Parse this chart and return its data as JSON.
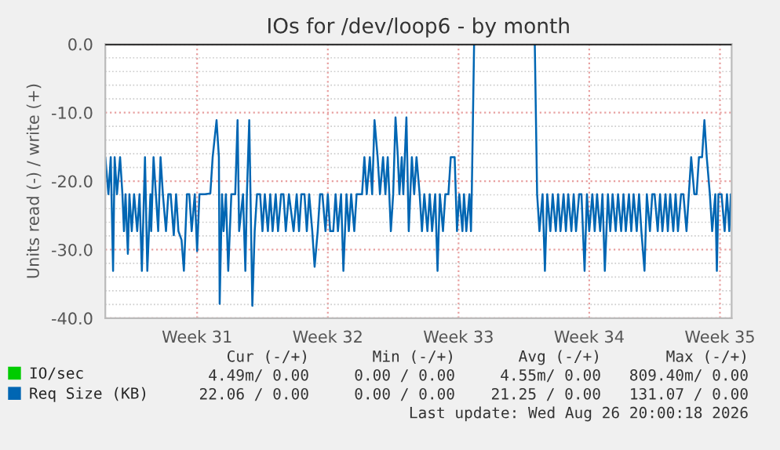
{
  "chart_data": {
    "type": "line",
    "title": "IOs for /dev/loop6 - by month",
    "ylabel": "Units read (-) / write (+)",
    "xlim": [
      "2026-07-25T14:00",
      "2026-08-28T03:00"
    ],
    "ylim": [
      -40,
      0
    ],
    "xticks": [
      {
        "value": "2026-07-30T12:00",
        "label": "Week 31"
      },
      {
        "value": "2026-08-06T12:00",
        "label": "Week 32"
      },
      {
        "value": "2026-08-13T12:00",
        "label": "Week 33"
      },
      {
        "value": "2026-08-20T12:00",
        "label": "Week 34"
      },
      {
        "value": "2026-08-27T12:00",
        "label": "Week 35"
      }
    ],
    "yticks": [
      {
        "value": -40,
        "label": "-40.0"
      },
      {
        "value": -30,
        "label": "-30.0"
      },
      {
        "value": -20,
        "label": "-20.0"
      },
      {
        "value": -10,
        "label": "-10.0"
      },
      {
        "value": 0,
        "label": "0.0"
      }
    ],
    "grid": true,
    "legend": "bottom left",
    "marker": "none",
    "line_style": "solid",
    "ref_lines": [
      {
        "axis": "y",
        "value": 0,
        "color": "#000000"
      }
    ],
    "series": [
      {
        "name": "IO/sec",
        "color": "#00cc00",
        "type": "line"
      },
      {
        "name": "Req Size (KB)",
        "color": "#0066b3",
        "x": [
          "2026-07-25T14:00",
          "2026-07-25T18:00",
          "2026-07-25T21:00",
          "2026-07-26T00:00",
          "2026-07-26T02:00",
          "2026-07-26T05:00",
          "2026-07-26T09:00",
          "2026-07-26T12:00",
          "2026-07-26T14:00",
          "2026-07-26T16:00",
          "2026-07-26T19:00",
          "2026-07-26T21:00",
          "2026-07-27T00:00",
          "2026-07-27T03:00",
          "2026-07-27T07:00",
          "2026-07-27T10:00",
          "2026-07-27T13:00",
          "2026-07-27T17:00",
          "2026-07-27T20:00",
          "2026-07-28T00:00",
          "2026-07-28T01:00",
          "2026-07-28T04:00",
          "2026-07-28T07:00",
          "2026-07-28T10:00",
          "2026-07-28T13:00",
          "2026-07-28T16:00",
          "2026-07-28T20:00",
          "2026-07-28T23:00",
          "2026-07-29T02:00",
          "2026-07-29T06:00",
          "2026-07-29T09:00",
          "2026-07-29T12:00",
          "2026-07-29T16:00",
          "2026-07-29T19:00",
          "2026-07-29T23:00",
          "2026-07-30T02:00",
          "2026-07-30T05:00",
          "2026-07-30T09:00",
          "2026-07-30T12:00",
          "2026-07-30T15:00",
          "2026-07-30T22:00",
          "2026-07-31T05:00",
          "2026-07-31T08:00",
          "2026-07-31T13:00",
          "2026-07-31T16:00",
          "2026-07-31T17:00",
          "2026-07-31T20:00",
          "2026-07-31T22:00",
          "2026-08-01T01:00",
          "2026-08-01T04:00",
          "2026-08-01T08:00",
          "2026-08-01T13:00",
          "2026-08-01T16:00",
          "2026-08-01T18:00",
          "2026-08-01T23:00",
          "2026-08-02T02:00",
          "2026-08-02T04:00",
          "2026-08-02T07:00",
          "2026-08-02T11:00",
          "2026-08-02T14:00",
          "2026-08-02T17:00",
          "2026-08-02T21:00",
          "2026-08-03T00:00",
          "2026-08-03T03:00",
          "2026-08-03T07:00",
          "2026-08-03T10:00",
          "2026-08-03T13:00",
          "2026-08-03T17:00",
          "2026-08-03T20:00",
          "2026-08-04T00:00",
          "2026-08-04T03:00",
          "2026-08-04T06:00",
          "2026-08-04T10:00",
          "2026-08-04T16:00",
          "2026-08-04T20:00",
          "2026-08-04T23:00",
          "2026-08-05T02:00",
          "2026-08-05T06:00",
          "2026-08-05T09:00",
          "2026-08-05T12:00",
          "2026-08-05T16:00",
          "2026-08-05T19:00",
          "2026-08-05T23:00",
          "2026-08-06T02:00",
          "2026-08-06T05:00",
          "2026-08-06T09:00",
          "2026-08-06T12:00",
          "2026-08-06T15:00",
          "2026-08-06T19:00",
          "2026-08-06T22:00",
          "2026-08-07T01:00",
          "2026-08-07T05:00",
          "2026-08-07T08:00",
          "2026-08-07T12:00",
          "2026-08-07T15:00",
          "2026-08-07T18:00",
          "2026-08-07T22:00",
          "2026-08-08T01:00",
          "2026-08-08T04:00",
          "2026-08-08T08:00",
          "2026-08-08T11:00",
          "2026-08-08T14:00",
          "2026-08-08T18:00",
          "2026-08-08T21:00",
          "2026-08-09T00:00",
          "2026-08-09T04:00",
          "2026-08-09T07:00",
          "2026-08-09T11:00",
          "2026-08-09T14:00",
          "2026-08-09T17:00",
          "2026-08-09T21:00",
          "2026-08-10T00:00",
          "2026-08-10T03:00",
          "2026-08-10T06:00",
          "2026-08-10T08:00",
          "2026-08-10T11:00",
          "2026-08-10T13:00",
          "2026-08-10T17:00",
          "2026-08-10T20:00",
          "2026-08-11T00:00",
          "2026-08-11T03:00",
          "2026-08-11T06:00",
          "2026-08-11T10:00",
          "2026-08-11T13:00",
          "2026-08-11T16:00",
          "2026-08-11T20:00",
          "2026-08-11T23:00",
          "2026-08-12T02:00",
          "2026-08-12T06:00",
          "2026-08-12T09:00",
          "2026-08-12T12:00",
          "2026-08-12T16:00",
          "2026-08-12T19:00",
          "2026-08-12T23:00",
          "2026-08-13T02:00",
          "2026-08-13T07:00",
          "2026-08-13T10:00",
          "2026-08-13T13:00",
          "2026-08-13T17:00",
          "2026-08-13T19:00",
          "2026-08-13T22:00",
          "2026-08-14T02:00",
          "2026-08-14T04:00",
          "2026-08-14T05:00",
          "2026-08-14T08:00",
          "2026-08-16T00:00",
          "2026-08-17T14:00",
          "2026-08-17T17:00",
          "2026-08-17T20:00",
          "2026-08-18T00:00",
          "2026-08-18T03:00",
          "2026-08-18T06:00",
          "2026-08-18T10:00",
          "2026-08-18T13:00",
          "2026-08-18T17:00",
          "2026-08-18T20:00",
          "2026-08-18T23:00",
          "2026-08-19T03:00",
          "2026-08-19T06:00",
          "2026-08-19T09:00",
          "2026-08-19T13:00",
          "2026-08-19T16:00",
          "2026-08-19T19:00",
          "2026-08-19T23:00",
          "2026-08-20T02:00",
          "2026-08-20T06:00",
          "2026-08-20T09:00",
          "2026-08-20T12:00",
          "2026-08-20T16:00",
          "2026-08-20T19:00",
          "2026-08-20T22:00",
          "2026-08-21T02:00",
          "2026-08-21T05:00",
          "2026-08-21T08:00",
          "2026-08-21T12:00",
          "2026-08-21T15:00",
          "2026-08-21T18:00",
          "2026-08-21T22:00",
          "2026-08-22T01:00",
          "2026-08-22T05:00",
          "2026-08-22T08:00",
          "2026-08-22T11:00",
          "2026-08-22T15:00",
          "2026-08-22T18:00",
          "2026-08-22T21:00",
          "2026-08-23T01:00",
          "2026-08-23T04:00",
          "2026-08-23T07:00",
          "2026-08-23T11:00",
          "2026-08-23T14:00",
          "2026-08-23T18:00",
          "2026-08-23T21:00",
          "2026-08-24T00:00",
          "2026-08-24T04:00",
          "2026-08-24T07:00",
          "2026-08-24T10:00",
          "2026-08-24T14:00",
          "2026-08-24T17:00",
          "2026-08-24T20:00",
          "2026-08-25T00:00",
          "2026-08-25T03:00",
          "2026-08-25T06:00",
          "2026-08-25T10:00",
          "2026-08-25T13:00",
          "2026-08-25T17:00",
          "2026-08-25T20:00",
          "2026-08-25T23:00",
          "2026-08-26T03:00",
          "2026-08-26T06:00",
          "2026-08-26T09:00",
          "2026-08-26T13:00",
          "2026-08-26T16:00",
          "2026-08-26T19:00",
          "2026-08-26T23:00",
          "2026-08-27T02:00",
          "2026-08-27T06:00",
          "2026-08-27T08:00",
          "2026-08-27T10:00",
          "2026-08-27T14:00",
          "2026-08-27T18:00",
          "2026-08-27T21:00",
          "2026-08-28T00:00",
          "2026-08-28T02:00"
        ],
        "values": [
          -16.5,
          -21.9,
          -16.5,
          -33.1,
          -16.5,
          -21.9,
          -16.5,
          -21.9,
          -27.3,
          -21.9,
          -30.6,
          -21.9,
          -27.3,
          -21.9,
          -27.3,
          -21.9,
          -33.1,
          -16.5,
          -33.1,
          -21.9,
          -27.3,
          -16.5,
          -21.9,
          -27.3,
          -16.5,
          -21.9,
          -27.3,
          -21.9,
          -21.9,
          -27.9,
          -21.9,
          -27.3,
          -28.6,
          -33.1,
          -21.9,
          -21.9,
          -27.3,
          -21.9,
          -30.2,
          -21.9,
          -21.9,
          -21.8,
          -16.5,
          -11.1,
          -16.5,
          -37.9,
          -21.9,
          -27.3,
          -21.9,
          -33.1,
          -21.9,
          -21.9,
          -11.1,
          -27.3,
          -21.9,
          -33.1,
          -21.9,
          -11.1,
          -38.2,
          -27.3,
          -21.9,
          -21.9,
          -27.3,
          -21.9,
          -27.3,
          -21.9,
          -27.3,
          -21.9,
          -27.3,
          -21.9,
          -21.9,
          -27.3,
          -21.9,
          -27.3,
          -21.9,
          -27.3,
          -21.9,
          -21.9,
          -27.3,
          -21.9,
          -27.3,
          -32.5,
          -27.3,
          -21.9,
          -21.9,
          -27.3,
          -21.9,
          -27.3,
          -27.3,
          -21.9,
          -27.3,
          -21.9,
          -33.1,
          -21.9,
          -27.3,
          -21.9,
          -27.3,
          -21.9,
          -21.9,
          -21.9,
          -16.5,
          -21.9,
          -16.5,
          -21.9,
          -11.1,
          -16.5,
          -21.9,
          -16.5,
          -21.9,
          -16.5,
          -27.3,
          -21.9,
          -10.7,
          -16.5,
          -21.9,
          -16.5,
          -21.9,
          -10.7,
          -27.3,
          -16.5,
          -21.9,
          -16.5,
          -21.9,
          -27.3,
          -21.9,
          -27.3,
          -21.9,
          -27.3,
          -21.9,
          -33.1,
          -21.9,
          -27.3,
          -21.9,
          -21.9,
          -16.5,
          -16.5,
          -27.3,
          -21.9,
          -27.3,
          -21.9,
          -27.3,
          -21.9,
          -27.3,
          -21.9,
          0,
          null,
          0,
          -21.9,
          -27.3,
          -21.9,
          -33.1,
          -21.9,
          -27.3,
          -21.9,
          -27.3,
          -21.9,
          -27.3,
          -21.9,
          -27.3,
          -21.9,
          -27.3,
          -21.9,
          -27.3,
          -21.9,
          -21.9,
          -33.1,
          -21.9,
          -27.3,
          -21.9,
          -27.3,
          -21.9,
          -27.3,
          -21.9,
          -33.1,
          -21.9,
          -27.3,
          -21.9,
          -27.3,
          -21.9,
          -27.3,
          -21.9,
          -27.3,
          -21.9,
          -27.3,
          -21.9,
          -27.3,
          -21.9,
          -27.3,
          -33.1,
          -21.9,
          -27.3,
          -21.9,
          -21.9,
          -27.3,
          -21.9,
          -27.3,
          -21.9,
          -27.3,
          -21.9,
          -27.3,
          -21.9,
          -27.3,
          -21.9,
          -21.9,
          -27.3,
          -21.9,
          -16.5,
          -21.9,
          -21.9,
          -16.5,
          -16.5,
          -11.1,
          -16.5,
          -21.9,
          -27.3,
          -21.9,
          -33.1,
          -21.9,
          -21.9,
          -27.3,
          -21.9,
          -27.3,
          -21.9
        ]
      }
    ],
    "annotations": [
      "Cur (-/+)",
      "Min (-/+)",
      "Avg (-/+)",
      "Max (-/+)",
      "4.49m/ 0.00",
      "0.00 / 0.00",
      "4.55m/ 0.00",
      "809.40m/ 0.00",
      "22.06 / 0.00",
      "0.00 / 0.00",
      "21.25 / 0.00",
      "131.07 / 0.00",
      "Last update: Wed Aug 26 20:00:18 2026"
    ]
  }
}
